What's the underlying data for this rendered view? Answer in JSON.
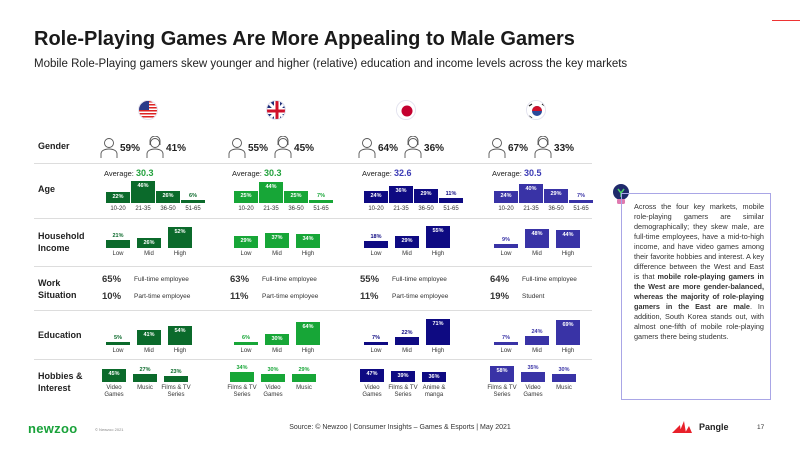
{
  "header": {
    "title": "Role-Playing Games Are More Appealing to Male Gamers",
    "subtitle": "Mobile Role-Playing gamers skew younger and higher (relative) education and income levels across the key markets"
  },
  "row_labels": {
    "gender": "Gender",
    "age": "Age",
    "income": "Household Income",
    "work": "Work Situation",
    "education": "Education",
    "hobbies": "Hobbies & Interest"
  },
  "age_categories": [
    "10-20",
    "21-35",
    "36-50",
    "51-65"
  ],
  "level_categories": [
    "Low",
    "Mid",
    "High"
  ],
  "avg_label": "Average: ",
  "markets": [
    {
      "flag": "us-flag",
      "color": "#0b6a2b",
      "accent": "#22a13c",
      "male": "59%",
      "female": "41%",
      "age_avg": "30.3",
      "age": [
        22,
        46,
        26,
        6
      ],
      "income": [
        21,
        26,
        52
      ],
      "work": [
        {
          "pct": "65%",
          "label": "Full-time employee"
        },
        {
          "pct": "10%",
          "label": "Part-time employee"
        }
      ],
      "education": [
        5,
        41,
        54
      ],
      "hobbies": [
        {
          "label": "Video Games",
          "value": 45
        },
        {
          "label": "Music",
          "value": 27
        },
        {
          "label": "Films & TV Series",
          "value": 23
        }
      ]
    },
    {
      "flag": "uk-flag",
      "color": "#17a637",
      "accent": "#22a13c",
      "male": "55%",
      "female": "45%",
      "age_avg": "30.3",
      "age": [
        25,
        44,
        25,
        7
      ],
      "income": [
        29,
        37,
        34
      ],
      "work": [
        {
          "pct": "63%",
          "label": "Full-time employee"
        },
        {
          "pct": "11%",
          "label": "Part-time employee"
        }
      ],
      "education": [
        6,
        30,
        64
      ],
      "hobbies": [
        {
          "label": "Films & TV Series",
          "value": 34
        },
        {
          "label": "Video Games",
          "value": 30
        },
        {
          "label": "Music",
          "value": 29
        }
      ]
    },
    {
      "flag": "jp-flag",
      "color": "#0e0a82",
      "accent": "#3b3bb5",
      "male": "64%",
      "female": "36%",
      "age_avg": "32.6",
      "age": [
        24,
        36,
        29,
        11
      ],
      "income": [
        18,
        29,
        55
      ],
      "work": [
        {
          "pct": "55%",
          "label": "Full-time employee"
        },
        {
          "pct": "11%",
          "label": "Part-time employee"
        }
      ],
      "education": [
        7,
        22,
        71
      ],
      "hobbies": [
        {
          "label": "Video Games",
          "value": 47
        },
        {
          "label": "Films & TV Series",
          "value": 39
        },
        {
          "label": "Anime & manga",
          "value": 36
        }
      ]
    },
    {
      "flag": "kr-flag",
      "color": "#3933a6",
      "accent": "#3b3bb5",
      "male": "67%",
      "female": "33%",
      "age_avg": "30.5",
      "age": [
        24,
        40,
        29,
        7
      ],
      "income": [
        9,
        48,
        44
      ],
      "work": [
        {
          "pct": "64%",
          "label": "Full-time employee"
        },
        {
          "pct": "19%",
          "label": "Student"
        }
      ],
      "education": [
        7,
        24,
        69
      ],
      "hobbies": [
        {
          "label": "Films & TV Series",
          "value": 58
        },
        {
          "label": "Video Games",
          "value": 35
        },
        {
          "label": "Music",
          "value": 30
        }
      ]
    }
  ],
  "note": {
    "p1": "Across the four key markets, mobile role-playing gamers are similar demographically; they skew male, are full-time employees, have a mid-to-high income, and have video games among their favorite hobbies and interest. A key difference between the West and East is that ",
    "bold": "mobile role-playing gamers in the West are more gender-balanced, whereas the majority of role-playing gamers in the East are male",
    "p2": ". In addition, South Korea stands out, with almost one-fifth of mobile role-playing gamers there being students."
  },
  "footer": {
    "logo": "newzoo",
    "copyright": "© Newzoo 2021",
    "source": "Source: © Newzoo | Consumer Insights – Games & Esports | May 2021",
    "brand": "Pangle",
    "page": "17"
  }
}
